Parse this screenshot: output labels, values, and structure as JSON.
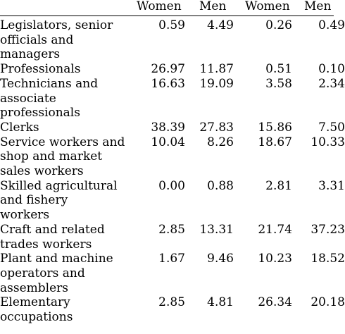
{
  "columns": [
    "Women",
    "Men",
    "Women",
    "Men"
  ],
  "rows": [
    {
      "label_lines": [
        "Legislators, senior",
        "officials and",
        "managers"
      ],
      "values": [
        "0.59",
        "4.49",
        "0.26",
        "0.49"
      ]
    },
    {
      "label_lines": [
        "Professionals"
      ],
      "values": [
        "26.97",
        "11.87",
        "0.51",
        "0.10"
      ]
    },
    {
      "label_lines": [
        "Technicians and",
        "associate",
        "professionals"
      ],
      "values": [
        "16.63",
        "19.09",
        "3.58",
        "2.34"
      ]
    },
    {
      "label_lines": [
        "Clerks"
      ],
      "values": [
        "38.39",
        "27.83",
        "15.86",
        "7.50"
      ]
    },
    {
      "label_lines": [
        "Service workers and",
        "shop and market",
        "sales workers"
      ],
      "values": [
        "10.04",
        "8.26",
        "18.67",
        "10.33"
      ]
    },
    {
      "label_lines": [
        "Skilled agricultural",
        "and fishery",
        "workers"
      ],
      "values": [
        "0.00",
        "0.88",
        "2.81",
        "3.31"
      ]
    },
    {
      "label_lines": [
        "Craft and related",
        "trades workers"
      ],
      "values": [
        "2.85",
        "13.31",
        "21.74",
        "37.23"
      ]
    },
    {
      "label_lines": [
        "Plant and machine",
        "operators and",
        "assemblers"
      ],
      "values": [
        "1.67",
        "9.46",
        "10.23",
        "18.52"
      ]
    },
    {
      "label_lines": [
        "Elementary",
        "occupations"
      ],
      "values": [
        "2.85",
        "4.81",
        "26.34",
        "20.18"
      ]
    }
  ]
}
